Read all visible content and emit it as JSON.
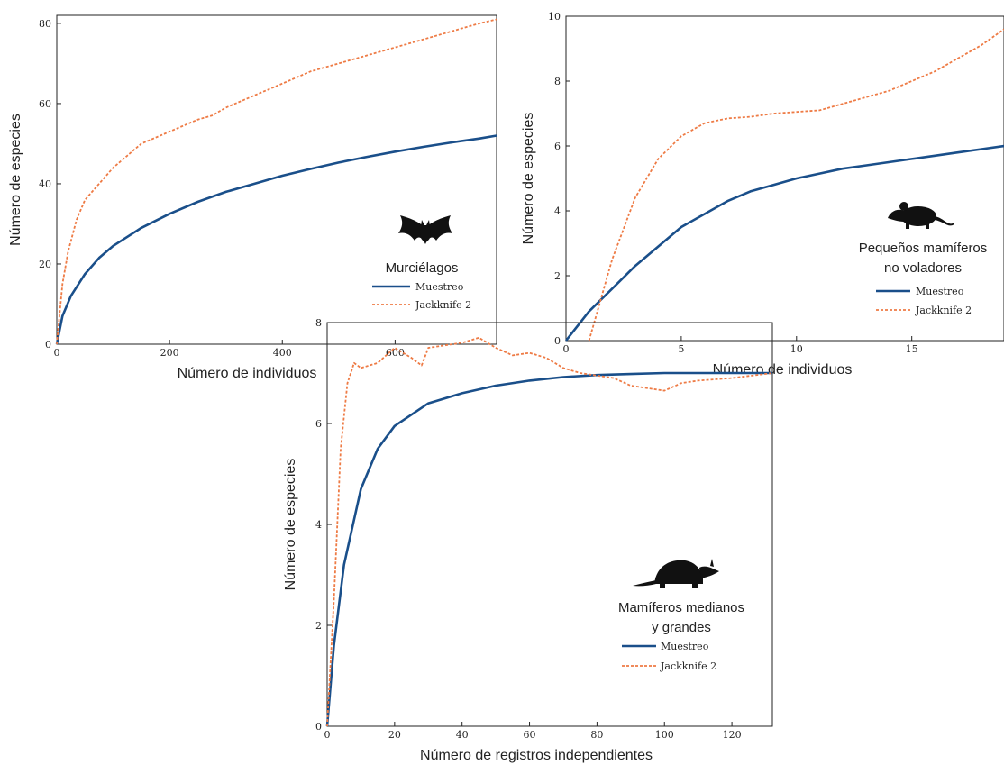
{
  "colors": {
    "muestreo": "#1a4f8a",
    "jackknife": "#ee7b45",
    "axis": "#222222",
    "silhouette": "#111111"
  },
  "chart_data": [
    {
      "type": "line",
      "label": "Murciélagos",
      "icon": "bat-icon",
      "xlabel": "Número de individuos",
      "ylabel": "Número de especies",
      "xlim": [
        0,
        780
      ],
      "ylim": [
        0,
        82
      ],
      "xticks": [
        0,
        200,
        400,
        600
      ],
      "yticks": [
        0,
        20,
        40,
        60,
        80
      ],
      "grid": false,
      "legend_position": "bottom-right",
      "series": [
        {
          "name": "Muestreo",
          "style": "solid",
          "x": [
            0,
            10,
            25,
            50,
            75,
            100,
            150,
            200,
            250,
            300,
            350,
            400,
            450,
            500,
            550,
            600,
            650,
            700,
            750,
            780
          ],
          "y": [
            0,
            7,
            12,
            17.5,
            21.5,
            24.5,
            29,
            32.5,
            35.5,
            38,
            40,
            42,
            43.7,
            45.3,
            46.7,
            48,
            49.2,
            50.3,
            51.3,
            52
          ]
        },
        {
          "name": "Jackknife 2",
          "style": "dashed",
          "x": [
            0,
            10,
            20,
            35,
            50,
            75,
            100,
            125,
            150,
            175,
            200,
            250,
            275,
            300,
            350,
            400,
            450,
            500,
            550,
            600,
            650,
            700,
            750,
            780
          ],
          "y": [
            0,
            15,
            23,
            31,
            36,
            40,
            44,
            47,
            50,
            51.5,
            53,
            56,
            57,
            59,
            62,
            65,
            68,
            70,
            72,
            74,
            76,
            78,
            80,
            81
          ]
        }
      ]
    },
    {
      "type": "line",
      "label": "Pequeños mamíferos no voladores",
      "icon": "rodent-icon",
      "xlabel": "Número de individuos",
      "ylabel": "Número de especies",
      "xlim": [
        0,
        19
      ],
      "ylim": [
        0,
        10
      ],
      "xticks": [
        0,
        5,
        10,
        15
      ],
      "yticks": [
        0,
        2,
        4,
        6,
        8,
        10
      ],
      "grid": false,
      "legend_position": "bottom-right",
      "series": [
        {
          "name": "Muestreo",
          "style": "solid",
          "x": [
            0,
            1,
            2,
            3,
            4,
            5,
            6,
            7,
            8,
            9,
            10,
            11,
            12,
            13,
            14,
            15,
            16,
            17,
            18,
            19
          ],
          "y": [
            0,
            0.9,
            1.6,
            2.3,
            2.9,
            3.5,
            3.9,
            4.3,
            4.6,
            4.8,
            5.0,
            5.15,
            5.3,
            5.4,
            5.5,
            5.6,
            5.7,
            5.8,
            5.9,
            6.0
          ]
        },
        {
          "name": "Jackknife 2",
          "style": "dashed",
          "x": [
            1,
            2,
            3,
            4,
            5,
            6,
            7,
            8,
            9,
            10,
            11,
            12,
            13,
            14,
            15,
            16,
            17,
            18,
            19
          ],
          "y": [
            0,
            2.5,
            4.4,
            5.6,
            6.3,
            6.7,
            6.85,
            6.9,
            7.0,
            7.05,
            7.1,
            7.3,
            7.5,
            7.7,
            8.0,
            8.3,
            8.7,
            9.1,
            9.6
          ]
        }
      ]
    },
    {
      "type": "line",
      "label": "Mamíferos medianos y grandes",
      "icon": "armadillo-icon",
      "xlabel": "Número de registros independientes",
      "ylabel": "Número de especies",
      "xlim": [
        0,
        132
      ],
      "ylim": [
        0,
        8
      ],
      "xticks": [
        0,
        20,
        40,
        60,
        80,
        100,
        120
      ],
      "yticks": [
        0,
        2,
        4,
        6,
        8
      ],
      "grid": false,
      "legend_position": "bottom-right",
      "series": [
        {
          "name": "Muestreo",
          "style": "solid",
          "x": [
            0,
            2,
            5,
            10,
            15,
            20,
            30,
            40,
            50,
            60,
            70,
            80,
            90,
            100,
            110,
            120,
            132
          ],
          "y": [
            0,
            1.6,
            3.2,
            4.7,
            5.5,
            5.95,
            6.4,
            6.6,
            6.75,
            6.85,
            6.92,
            6.96,
            6.98,
            7.0,
            7.0,
            7.0,
            7.0
          ]
        },
        {
          "name": "Jackknife 2",
          "style": "dashed",
          "x": [
            0,
            2,
            4,
            6,
            8,
            10,
            15,
            20,
            25,
            28,
            30,
            35,
            40,
            45,
            50,
            55,
            60,
            65,
            70,
            75,
            80,
            85,
            90,
            95,
            100,
            105,
            110,
            120,
            132
          ],
          "y": [
            0,
            2.5,
            5.5,
            6.8,
            7.2,
            7.1,
            7.2,
            7.5,
            7.3,
            7.15,
            7.5,
            7.55,
            7.6,
            7.7,
            7.5,
            7.35,
            7.4,
            7.3,
            7.1,
            7.0,
            6.95,
            6.9,
            6.75,
            6.7,
            6.65,
            6.8,
            6.85,
            6.9,
            7.0
          ]
        }
      ]
    }
  ]
}
